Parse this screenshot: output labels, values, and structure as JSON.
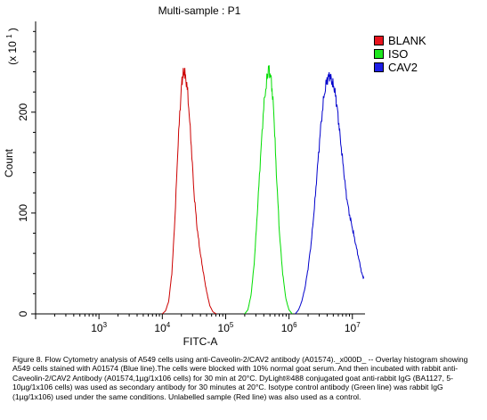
{
  "chart_data": {
    "type": "histogram-overlay",
    "title": "Multi-sample : P1",
    "xlabel": "FITC-A",
    "ylabel": "Count",
    "y_multiplier": "(x 10",
    "y_multiplier_exp": "1",
    "x_scale": "log",
    "xlim_log10": [
      2.0,
      7.2
    ],
    "ylim": [
      0,
      290
    ],
    "x_ticks": [
      {
        "base": "10",
        "exp": "3",
        "log": 3
      },
      {
        "base": "10",
        "exp": "4",
        "log": 4
      },
      {
        "base": "10",
        "exp": "5",
        "log": 5
      },
      {
        "base": "10",
        "exp": "6",
        "log": 6
      },
      {
        "base": "10",
        "exp": "7",
        "log": 7
      }
    ],
    "y_ticks": [
      "0",
      "100",
      "200"
    ],
    "y_tick_values": [
      0,
      100,
      200
    ],
    "series": [
      {
        "name": "BLANK",
        "color": "#cc0000",
        "points": [
          [
            4.0,
            0
          ],
          [
            4.05,
            3
          ],
          [
            4.1,
            12
          ],
          [
            4.15,
            40
          ],
          [
            4.2,
            95
          ],
          [
            4.25,
            170
          ],
          [
            4.3,
            225
          ],
          [
            4.33,
            240
          ],
          [
            4.36,
            238
          ],
          [
            4.4,
            220
          ],
          [
            4.45,
            175
          ],
          [
            4.5,
            120
          ],
          [
            4.55,
            85
          ],
          [
            4.6,
            60
          ],
          [
            4.65,
            40
          ],
          [
            4.7,
            22
          ],
          [
            4.75,
            8
          ],
          [
            4.8,
            2
          ],
          [
            4.85,
            0
          ]
        ]
      },
      {
        "name": "ISO",
        "color": "#00dd00",
        "points": [
          [
            5.3,
            0
          ],
          [
            5.35,
            4
          ],
          [
            5.4,
            18
          ],
          [
            5.45,
            50
          ],
          [
            5.5,
            100
          ],
          [
            5.55,
            155
          ],
          [
            5.6,
            205
          ],
          [
            5.65,
            232
          ],
          [
            5.68,
            244
          ],
          [
            5.72,
            232
          ],
          [
            5.76,
            200
          ],
          [
            5.8,
            140
          ],
          [
            5.85,
            80
          ],
          [
            5.9,
            40
          ],
          [
            5.95,
            15
          ],
          [
            6.0,
            4
          ],
          [
            6.05,
            0
          ]
        ]
      },
      {
        "name": "CAV2",
        "color": "#0000cc",
        "points": [
          [
            6.1,
            0
          ],
          [
            6.15,
            4
          ],
          [
            6.2,
            12
          ],
          [
            6.25,
            25
          ],
          [
            6.3,
            45
          ],
          [
            6.35,
            70
          ],
          [
            6.4,
            105
          ],
          [
            6.45,
            145
          ],
          [
            6.5,
            185
          ],
          [
            6.55,
            215
          ],
          [
            6.6,
            232
          ],
          [
            6.64,
            237
          ],
          [
            6.68,
            230
          ],
          [
            6.72,
            222
          ],
          [
            6.76,
            205
          ],
          [
            6.8,
            180
          ],
          [
            6.85,
            150
          ],
          [
            6.9,
            120
          ],
          [
            6.95,
            100
          ],
          [
            7.0,
            85
          ],
          [
            7.05,
            70
          ],
          [
            7.1,
            55
          ],
          [
            7.15,
            40
          ],
          [
            7.18,
            35
          ]
        ]
      }
    ],
    "legend_placement": "top-right",
    "grid": false
  },
  "caption": "Figure 8. Flow Cytometry analysis of A549 cells using anti-Caveolin-2/CAV2 antibody (A01574)._x000D_ -- Overlay histogram showing A549 cells stained with A01574 (Blue line).The cells were blocked with 10% normal goat serum. And then incubated with rabbit anti-Caveolin-2/CAV2 Antibody (A01574,1µg/1x106 cells) for 30 min at 20°C. DyLight®488 conjugated goat anti-rabbit IgG (BA1127, 5-10µg/1x106 cells) was used as secondary antibody for 30 minutes at 20°C. Isotype control antibody (Green line) was rabbit IgG (1µg/1x106) used under the same conditions. Unlabelled sample (Red line) was also used as a control."
}
